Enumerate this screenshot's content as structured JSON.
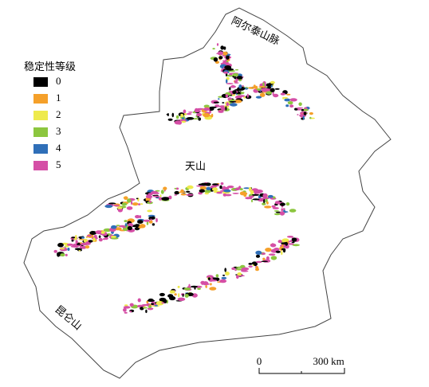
{
  "legend": {
    "title": "稳定性等级",
    "items": [
      {
        "label": "0",
        "color": "#000000"
      },
      {
        "label": "1",
        "color": "#f5a02a"
      },
      {
        "label": "2",
        "color": "#eeea4c"
      },
      {
        "label": "3",
        "color": "#8cc63f"
      },
      {
        "label": "4",
        "color": "#2f6fb8"
      },
      {
        "label": "5",
        "color": "#d54fa6"
      }
    ]
  },
  "labels": {
    "altai": "阿尔泰山脉",
    "tianshan": "天山",
    "kunlun": "昆仑山"
  },
  "scale_bar": {
    "start": "0",
    "end": "300 km"
  }
}
